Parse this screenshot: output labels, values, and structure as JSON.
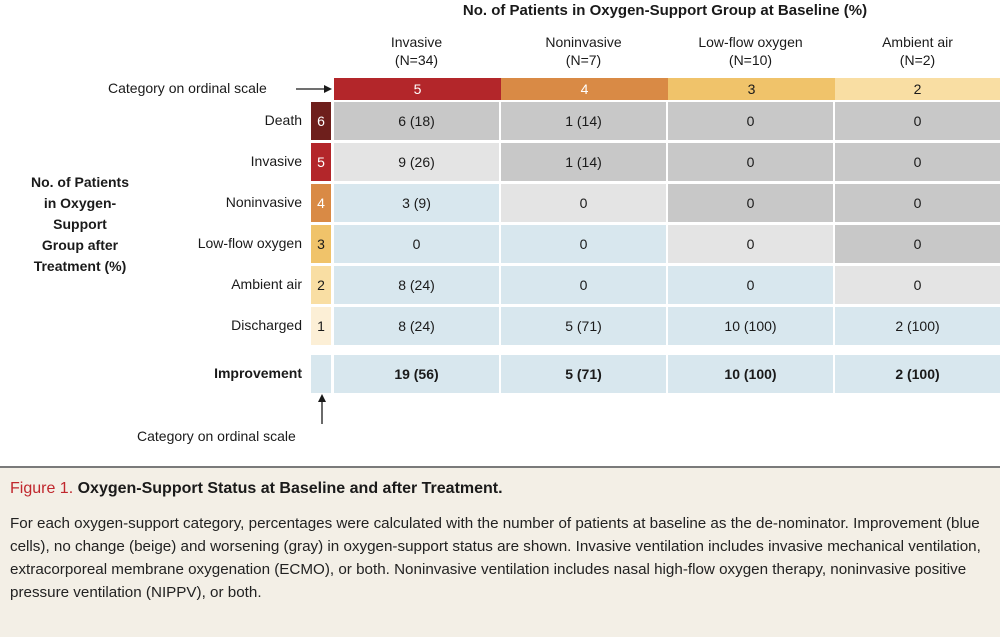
{
  "header": {
    "title": "No. of Patients in Oxygen-Support Group at Baseline (%)"
  },
  "columns": [
    {
      "label": "Invasive",
      "n": "(N=34)",
      "category": "5",
      "color": "#b3262a"
    },
    {
      "label": "Noninvasive",
      "n": "(N=7)",
      "category": "4",
      "color": "#d98a45"
    },
    {
      "label": "Low-flow oxygen",
      "n": "(N=10)",
      "category": "3",
      "color": "#f0c36a"
    },
    {
      "label": "Ambient air",
      "n": "(N=2)",
      "category": "2",
      "color": "#f9dea3"
    }
  ],
  "category_label_top": "Category on ordinal scale",
  "category_label_bottom": "Category on ordinal scale",
  "row_axis_title": [
    "No. of Patients",
    "in Oxygen-Support",
    "Group after",
    "Treatment (%)"
  ],
  "rows": [
    {
      "label": "Death",
      "category": "6",
      "badge_color": "#6e1f1c",
      "badge_text_color": "#ffffff",
      "cells": [
        "6 (18)",
        "1 (14)",
        "0",
        "0"
      ],
      "status": [
        "worse",
        "worse",
        "worse",
        "worse"
      ]
    },
    {
      "label": "Invasive",
      "category": "5",
      "badge_color": "#b3262a",
      "badge_text_color": "#ffffff",
      "cells": [
        "9 (26)",
        "1 (14)",
        "0",
        "0"
      ],
      "status": [
        "same",
        "worse",
        "worse",
        "worse"
      ]
    },
    {
      "label": "Noninvasive",
      "category": "4",
      "badge_color": "#d98a45",
      "badge_text_color": "#ffffff",
      "cells": [
        "3 (9)",
        "0",
        "0",
        "0"
      ],
      "status": [
        "better",
        "same",
        "worse",
        "worse"
      ]
    },
    {
      "label": "Low-flow oxygen",
      "category": "3",
      "badge_color": "#f0c36a",
      "badge_text_color": "#1a1a1a",
      "cells": [
        "0",
        "0",
        "0",
        "0"
      ],
      "status": [
        "better",
        "better",
        "same",
        "worse"
      ]
    },
    {
      "label": "Ambient air",
      "category": "2",
      "badge_color": "#f9dea3",
      "badge_text_color": "#1a1a1a",
      "cells": [
        "8 (24)",
        "0",
        "0",
        "0"
      ],
      "status": [
        "better",
        "better",
        "better",
        "same"
      ]
    },
    {
      "label": "Discharged",
      "category": "1",
      "badge_color": "#fcefd6",
      "badge_text_color": "#1a1a1a",
      "cells": [
        "8 (24)",
        "5 (71)",
        "10 (100)",
        "2 (100)"
      ],
      "status": [
        "better",
        "better",
        "better",
        "better"
      ]
    }
  ],
  "improvement": {
    "label": "Improvement",
    "cells": [
      "19 (56)",
      "5 (71)",
      "10 (100)",
      "2 (100)"
    ]
  },
  "colors": {
    "better": "#d8e7ee",
    "same": "#e4e4e4",
    "worse": "#c8c8c8",
    "figure_red": "#c0272d"
  },
  "caption": {
    "figure_label": "Figure 1.",
    "title": "Oxygen-Support Status at Baseline and after Treatment.",
    "body": "For each oxygen-support category, percentages were calculated with the number of patients at baseline as the de-nominator. Improvement (blue cells), no change (beige) and worsening (gray) in oxygen-support status are shown. Invasive ventilation includes invasive mechanical ventilation, extracorporeal membrane oxygenation (ECMO), or both. Noninvasive ventilation includes nasal high-flow oxygen therapy, noninvasive positive pressure ventilation (NIPPV), or both."
  },
  "chart_data": {
    "type": "table",
    "title": "No. of Patients in Oxygen-Support Group at Baseline (%)",
    "columns": [
      "Invasive (N=34)",
      "Noninvasive (N=7)",
      "Low-flow oxygen (N=10)",
      "Ambient air (N=2)"
    ],
    "rows": [
      "Death",
      "Invasive",
      "Noninvasive",
      "Low-flow oxygen",
      "Ambient air",
      "Discharged",
      "Improvement"
    ],
    "values": [
      [
        "6 (18)",
        "1 (14)",
        "0",
        "0"
      ],
      [
        "9 (26)",
        "1 (14)",
        "0",
        "0"
      ],
      [
        "3 (9)",
        "0",
        "0",
        "0"
      ],
      [
        "0",
        "0",
        "0",
        "0"
      ],
      [
        "8 (24)",
        "0",
        "0",
        "0"
      ],
      [
        "8 (24)",
        "5 (71)",
        "10 (100)",
        "2 (100)"
      ],
      [
        "19 (56)",
        "5 (71)",
        "10 (100)",
        "2 (100)"
      ]
    ]
  }
}
